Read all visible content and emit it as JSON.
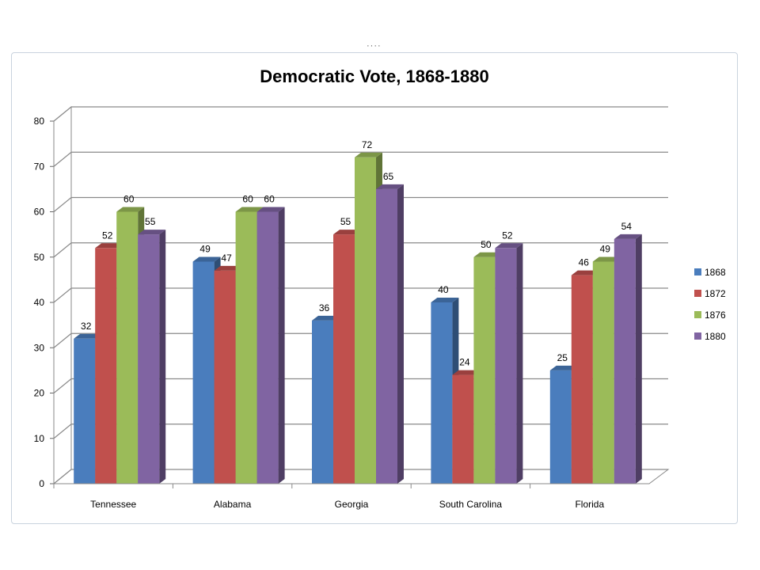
{
  "chart_data": {
    "type": "bar",
    "title": "Democratic Vote, 1868-1880",
    "xlabel": "",
    "ylabel": "",
    "categories": [
      "Tennessee",
      "Alabama",
      "Georgia",
      "South  Carolina",
      "Florida"
    ],
    "series": [
      {
        "name": "1868",
        "color": "#4a7dbd",
        "values": [
          32,
          49,
          36,
          40,
          25
        ]
      },
      {
        "name": "1872",
        "color": "#c0504d",
        "values": [
          52,
          47,
          55,
          24,
          46
        ]
      },
      {
        "name": "1876",
        "color": "#9bbb59",
        "values": [
          60,
          60,
          72,
          50,
          49
        ]
      },
      {
        "name": "1880",
        "color": "#8064a2",
        "values": [
          55,
          60,
          65,
          52,
          54
        ]
      }
    ],
    "ylim": [
      0,
      80
    ],
    "yticks": [
      0,
      10,
      20,
      30,
      40,
      50,
      60,
      70,
      80
    ],
    "grid": true,
    "legend_position": "right",
    "style": "3d-clustered-column",
    "data_labels": true
  }
}
